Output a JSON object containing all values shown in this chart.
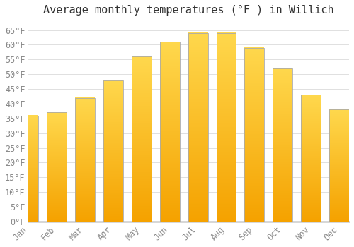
{
  "title": "Average monthly temperatures (°F ) in Willich",
  "months": [
    "Jan",
    "Feb",
    "Mar",
    "Apr",
    "May",
    "Jun",
    "Jul",
    "Aug",
    "Sep",
    "Oct",
    "Nov",
    "Dec"
  ],
  "values": [
    36,
    37,
    42,
    48,
    56,
    61,
    64,
    64,
    59,
    52,
    43,
    38
  ],
  "bar_color_top": "#FFD84D",
  "bar_color_bottom": "#F5A200",
  "background_color": "#ffffff",
  "grid_color": "#e0e0e0",
  "ylim": [
    0,
    68
  ],
  "yticks": [
    0,
    5,
    10,
    15,
    20,
    25,
    30,
    35,
    40,
    45,
    50,
    55,
    60,
    65
  ],
  "title_fontsize": 11,
  "tick_fontsize": 8.5,
  "bar_edge_color": "#aaaaaa",
  "bar_width": 0.7
}
